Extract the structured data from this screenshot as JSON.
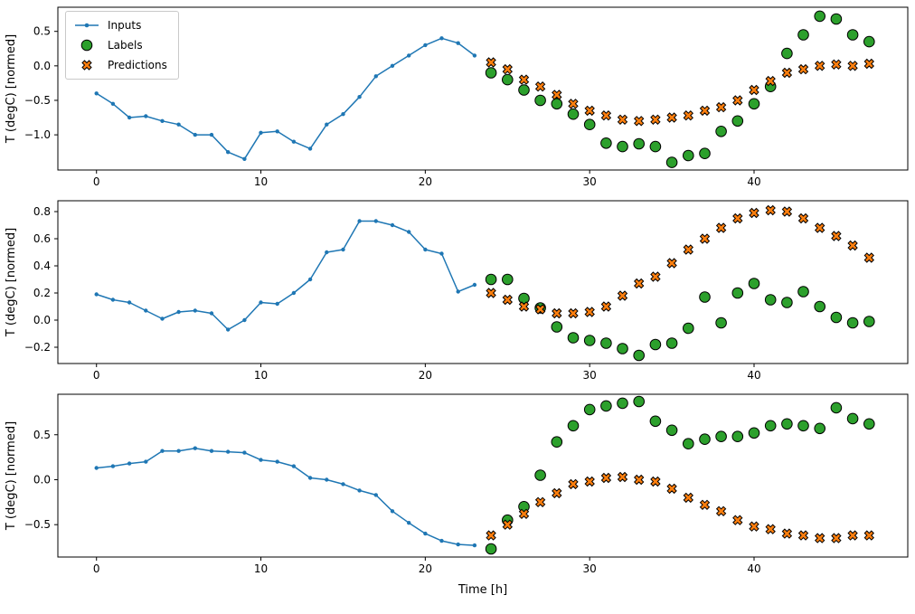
{
  "figure": {
    "xlabel": "Time [h]",
    "ylabel": "T (degC) [normed]",
    "background": "#ffffff",
    "colors": {
      "inputs": "#1f77b4",
      "labels": "#2ca02c",
      "predictions": "#ff7f0e",
      "marker_edge": "#000000",
      "axes_edge": "#000000"
    },
    "legend": {
      "items": [
        {
          "label": "Inputs",
          "marker": "line-with-dot",
          "color": "#1f77b4"
        },
        {
          "label": "Labels",
          "marker": "circle",
          "color": "#2ca02c"
        },
        {
          "label": "Predictions",
          "marker": "x-cross",
          "color": "#ff7f0e"
        }
      ]
    }
  },
  "chart_data": [
    {
      "type": "line",
      "ylabel": "T (degC) [normed]",
      "xlabel": "",
      "xlim": [
        -2.35,
        49.35
      ],
      "ylim": [
        -1.51,
        0.85
      ],
      "xticks": [
        0,
        10,
        20,
        30,
        40
      ],
      "yticks": [
        -1.0,
        -0.5,
        0.0,
        0.5
      ],
      "grid": false,
      "x_inputs": [
        0,
        1,
        2,
        3,
        4,
        5,
        6,
        7,
        8,
        9,
        10,
        11,
        12,
        13,
        14,
        15,
        16,
        17,
        18,
        19,
        20,
        21,
        22,
        23
      ],
      "x_forecast": [
        24,
        25,
        26,
        27,
        28,
        29,
        30,
        31,
        32,
        33,
        34,
        35,
        36,
        37,
        38,
        39,
        40,
        41,
        42,
        43,
        44,
        45,
        46,
        47
      ],
      "series": [
        {
          "name": "Inputs",
          "style": "line+dot",
          "color": "#1f77b4",
          "x_ref": "x_inputs",
          "y": [
            -0.4,
            -0.55,
            -0.75,
            -0.73,
            -0.8,
            -0.85,
            -1.0,
            -1.0,
            -1.25,
            -1.35,
            -0.97,
            -0.95,
            -1.1,
            -1.2,
            -0.85,
            -0.7,
            -0.45,
            -0.15,
            0.0,
            0.15,
            0.3,
            0.4,
            0.33,
            0.15
          ]
        },
        {
          "name": "Labels",
          "style": "scatter-circle",
          "color": "#2ca02c",
          "edge": "#000000",
          "x_ref": "x_forecast",
          "y": [
            -0.1,
            -0.2,
            -0.35,
            -0.5,
            -0.55,
            -0.7,
            -0.85,
            -1.12,
            -1.17,
            -1.13,
            -1.17,
            -1.4,
            -1.3,
            -1.27,
            -0.95,
            -0.8,
            -0.55,
            -0.3,
            0.18,
            0.45,
            0.72,
            0.68,
            0.45,
            0.35
          ]
        },
        {
          "name": "Predictions",
          "style": "scatter-x",
          "color": "#ff7f0e",
          "edge": "#000000",
          "x_ref": "x_forecast",
          "y": [
            0.05,
            -0.05,
            -0.2,
            -0.3,
            -0.42,
            -0.55,
            -0.65,
            -0.72,
            -0.78,
            -0.8,
            -0.78,
            -0.75,
            -0.72,
            -0.65,
            -0.6,
            -0.5,
            -0.35,
            -0.22,
            -0.1,
            -0.05,
            0.0,
            0.02,
            0.0,
            0.03
          ]
        }
      ]
    },
    {
      "type": "line",
      "ylabel": "T (degC) [normed]",
      "xlabel": "",
      "xlim": [
        -2.35,
        49.35
      ],
      "ylim": [
        -0.32,
        0.88
      ],
      "xticks": [
        0,
        10,
        20,
        30,
        40
      ],
      "yticks": [
        -0.2,
        0.0,
        0.2,
        0.4,
        0.6,
        0.8
      ],
      "grid": false,
      "x_inputs": [
        0,
        1,
        2,
        3,
        4,
        5,
        6,
        7,
        8,
        9,
        10,
        11,
        12,
        13,
        14,
        15,
        16,
        17,
        18,
        19,
        20,
        21,
        22,
        23
      ],
      "x_forecast": [
        24,
        25,
        26,
        27,
        28,
        29,
        30,
        31,
        32,
        33,
        34,
        35,
        36,
        37,
        38,
        39,
        40,
        41,
        42,
        43,
        44,
        45,
        46,
        47
      ],
      "series": [
        {
          "name": "Inputs",
          "style": "line+dot",
          "color": "#1f77b4",
          "x_ref": "x_inputs",
          "y": [
            0.19,
            0.15,
            0.13,
            0.07,
            0.01,
            0.06,
            0.07,
            0.05,
            -0.07,
            0.0,
            0.13,
            0.12,
            0.2,
            0.3,
            0.5,
            0.52,
            0.73,
            0.73,
            0.7,
            0.65,
            0.52,
            0.49,
            0.21,
            0.26
          ]
        },
        {
          "name": "Labels",
          "style": "scatter-circle",
          "color": "#2ca02c",
          "edge": "#000000",
          "x_ref": "x_forecast",
          "y": [
            0.3,
            0.3,
            0.16,
            0.09,
            -0.05,
            -0.13,
            -0.15,
            -0.17,
            -0.21,
            -0.26,
            -0.18,
            -0.17,
            -0.06,
            0.17,
            -0.02,
            0.2,
            0.27,
            0.15,
            0.13,
            0.21,
            0.1,
            0.02,
            -0.02,
            -0.01
          ]
        },
        {
          "name": "Predictions",
          "style": "scatter-x",
          "color": "#ff7f0e",
          "edge": "#000000",
          "x_ref": "x_forecast",
          "y": [
            0.2,
            0.15,
            0.1,
            0.08,
            0.05,
            0.05,
            0.06,
            0.1,
            0.18,
            0.27,
            0.32,
            0.42,
            0.52,
            0.6,
            0.68,
            0.75,
            0.79,
            0.81,
            0.8,
            0.75,
            0.68,
            0.62,
            0.55,
            0.46
          ]
        }
      ]
    },
    {
      "type": "line",
      "ylabel": "T (degC) [normed]",
      "xlabel": "Time [h]",
      "xlim": [
        -2.35,
        49.35
      ],
      "ylim": [
        -0.86,
        0.95
      ],
      "xticks": [
        0,
        10,
        20,
        30,
        40
      ],
      "yticks": [
        -0.5,
        0.0,
        0.5
      ],
      "grid": false,
      "x_inputs": [
        0,
        1,
        2,
        3,
        4,
        5,
        6,
        7,
        8,
        9,
        10,
        11,
        12,
        13,
        14,
        15,
        16,
        17,
        18,
        19,
        20,
        21,
        22,
        23
      ],
      "x_forecast": [
        24,
        25,
        26,
        27,
        28,
        29,
        30,
        31,
        32,
        33,
        34,
        35,
        36,
        37,
        38,
        39,
        40,
        41,
        42,
        43,
        44,
        45,
        46,
        47
      ],
      "series": [
        {
          "name": "Inputs",
          "style": "line+dot",
          "color": "#1f77b4",
          "x_ref": "x_inputs",
          "y": [
            0.13,
            0.15,
            0.18,
            0.2,
            0.32,
            0.32,
            0.35,
            0.32,
            0.31,
            0.3,
            0.22,
            0.2,
            0.15,
            0.02,
            0.0,
            -0.05,
            -0.12,
            -0.17,
            -0.35,
            -0.48,
            -0.6,
            -0.68,
            -0.72,
            -0.73
          ]
        },
        {
          "name": "Labels",
          "style": "scatter-circle",
          "color": "#2ca02c",
          "edge": "#000000",
          "x_ref": "x_forecast",
          "y": [
            -0.77,
            -0.45,
            -0.3,
            0.05,
            0.42,
            0.6,
            0.78,
            0.82,
            0.85,
            0.87,
            0.65,
            0.55,
            0.4,
            0.45,
            0.48,
            0.48,
            0.52,
            0.6,
            0.62,
            0.6,
            0.57,
            0.8,
            0.68,
            0.62
          ]
        },
        {
          "name": "Predictions",
          "style": "scatter-x",
          "color": "#ff7f0e",
          "edge": "#000000",
          "x_ref": "x_forecast",
          "y": [
            -0.62,
            -0.5,
            -0.38,
            -0.25,
            -0.15,
            -0.05,
            -0.02,
            0.02,
            0.03,
            0.0,
            -0.02,
            -0.1,
            -0.2,
            -0.28,
            -0.35,
            -0.45,
            -0.52,
            -0.55,
            -0.6,
            -0.62,
            -0.65,
            -0.65,
            -0.62,
            -0.62
          ]
        }
      ]
    }
  ]
}
